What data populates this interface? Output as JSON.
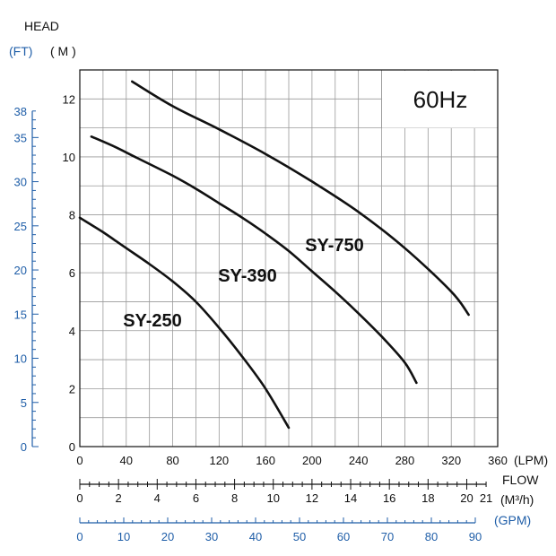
{
  "colors": {
    "curve": "#111111",
    "grid": "#9a9a9a",
    "blue_scale": "#1f5ea8",
    "frame": "#111111"
  },
  "chart_data": {
    "type": "line",
    "title": "60Hz",
    "ylabel": "HEAD",
    "y_units_primary": "( M )",
    "y_units_secondary": "(FT)",
    "xlabel": "FLOW",
    "x_units_primary": "(LPM)",
    "x_units_secondary": "(M³/h)",
    "x_units_tertiary": "(GPM)",
    "xlim": [
      0,
      360
    ],
    "ylim": [
      0,
      13
    ],
    "grid": true,
    "x_ticks": [
      0,
      40,
      80,
      120,
      160,
      200,
      240,
      280,
      320,
      360
    ],
    "x_tick_labels": [
      "0",
      "40",
      "80",
      "120",
      "160",
      "200",
      "240",
      "280",
      "320",
      "360"
    ],
    "y_ticks": [
      0,
      2,
      4,
      6,
      8,
      10,
      12
    ],
    "y_tick_labels": [
      "0",
      "2",
      "4",
      "6",
      "8",
      "10",
      "12"
    ],
    "ft_ticks": [
      0,
      5,
      10,
      15,
      20,
      25,
      30,
      35,
      38
    ],
    "ft_tick_labels": [
      "0",
      "5",
      "10",
      "15",
      "20",
      "25",
      "30",
      "35",
      "38"
    ],
    "m3h_ticks": [
      0,
      2,
      4,
      6,
      8,
      10,
      12,
      14,
      16,
      18,
      20,
      21
    ],
    "m3h_tick_labels": [
      "0",
      "2",
      "4",
      "6",
      "8",
      "10",
      "12",
      "14",
      "16",
      "18",
      "20",
      "21"
    ],
    "gpm_ticks": [
      0,
      10,
      20,
      30,
      40,
      50,
      60,
      70,
      80,
      90
    ],
    "gpm_tick_labels": [
      "0",
      "10",
      "20",
      "30",
      "40",
      "50",
      "60",
      "70",
      "80",
      "90"
    ],
    "series": [
      {
        "name": "SY-250",
        "x": [
          0,
          20,
          40,
          60,
          80,
          100,
          120,
          140,
          160,
          180
        ],
        "y": [
          7.9,
          7.4,
          6.85,
          6.3,
          5.7,
          5.0,
          4.1,
          3.1,
          2.0,
          0.65
        ]
      },
      {
        "name": "SY-390",
        "x": [
          10,
          30,
          50,
          80,
          100,
          120,
          140,
          160,
          180,
          200,
          220,
          240,
          260,
          280,
          290
        ],
        "y": [
          10.7,
          10.35,
          9.95,
          9.35,
          8.9,
          8.4,
          7.9,
          7.35,
          6.75,
          6.05,
          5.35,
          4.6,
          3.8,
          2.9,
          2.2
        ]
      },
      {
        "name": "SY-750",
        "x": [
          45,
          80,
          120,
          160,
          200,
          240,
          280,
          320,
          335
        ],
        "y": [
          12.6,
          11.75,
          10.95,
          10.1,
          9.15,
          8.1,
          6.85,
          5.35,
          4.55
        ]
      }
    ]
  }
}
